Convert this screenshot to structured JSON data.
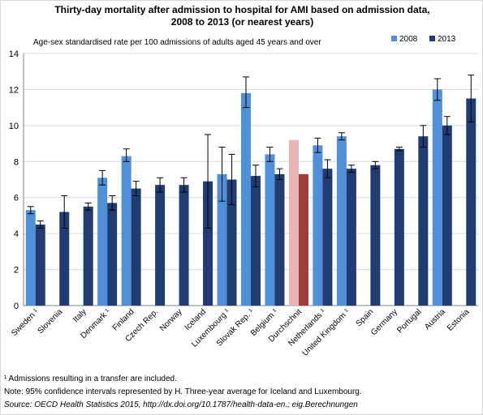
{
  "chart_data": {
    "type": "bar",
    "title_line1": "Thirty-day mortality after admission to hospital for AMI based on admission data,",
    "title_line2": "2008 to 2013 (or nearest years)",
    "ylabel": "Age-sex standardised rate  per 100 admissions of adults aged 45 years and over",
    "ylim": [
      0,
      14
    ],
    "yticks": [
      "0",
      "2",
      "4",
      "6",
      "8",
      "10",
      "12",
      "14"
    ],
    "grid": true,
    "legend_position": "top-right",
    "categories": [
      "Sweden ¹",
      "Slovenia",
      "Italy",
      "Denmark ¹",
      "Finland",
      "Czech Rep.",
      "Norway",
      "Iceland",
      "Luxembourg ¹",
      "Slovak Rep. ¹",
      "Belgium ¹",
      "Durchschnit",
      "Netherlands ¹",
      "United Kingdom ¹",
      "Spain",
      "Germany",
      "Portugal",
      "Austria",
      "Estonia"
    ],
    "series": [
      {
        "name": "2008",
        "color": "#4f90d8",
        "highlight_color": "#e8b4b4",
        "values": [
          5.3,
          null,
          null,
          7.1,
          8.3,
          null,
          null,
          null,
          7.3,
          11.8,
          8.4,
          9.2,
          8.9,
          9.4,
          null,
          null,
          null,
          12.0,
          null
        ],
        "ci_low": [
          5.1,
          null,
          null,
          6.7,
          8.0,
          null,
          null,
          null,
          5.8,
          11.0,
          8.0,
          null,
          8.5,
          9.2,
          null,
          null,
          null,
          11.4,
          null
        ],
        "ci_high": [
          5.5,
          null,
          null,
          7.5,
          8.7,
          null,
          null,
          null,
          8.8,
          12.7,
          8.8,
          null,
          9.3,
          9.6,
          null,
          null,
          null,
          12.6,
          null
        ]
      },
      {
        "name": "2013",
        "color": "#1f3d73",
        "highlight_color": "#a33a3a",
        "values": [
          4.5,
          5.2,
          5.5,
          5.7,
          6.5,
          6.7,
          6.7,
          6.9,
          7.0,
          7.2,
          7.3,
          7.3,
          7.6,
          7.6,
          7.8,
          8.7,
          9.4,
          10.0,
          11.5
        ],
        "ci_low": [
          4.3,
          4.3,
          5.3,
          5.3,
          6.1,
          6.3,
          6.3,
          4.3,
          5.6,
          6.6,
          7.0,
          null,
          7.1,
          7.4,
          7.6,
          8.6,
          8.8,
          9.5,
          10.2
        ],
        "ci_high": [
          4.7,
          6.1,
          5.7,
          6.1,
          6.9,
          7.1,
          7.1,
          9.5,
          8.4,
          7.8,
          7.6,
          null,
          8.1,
          7.8,
          8.0,
          8.8,
          10.0,
          10.5,
          12.8
        ]
      }
    ],
    "highlight_category": "Durchschnit"
  },
  "footnote": "¹ Admissions resulting in a transfer are included.",
  "note": "Note: 95% confidence intervals represented by H. Three-year average for Iceland and Luxembourg.",
  "source": "Source: OECD Health Statistics 2015, http://dx.doi.org/10.1787/health-data-en.; eig.Berechnungen"
}
